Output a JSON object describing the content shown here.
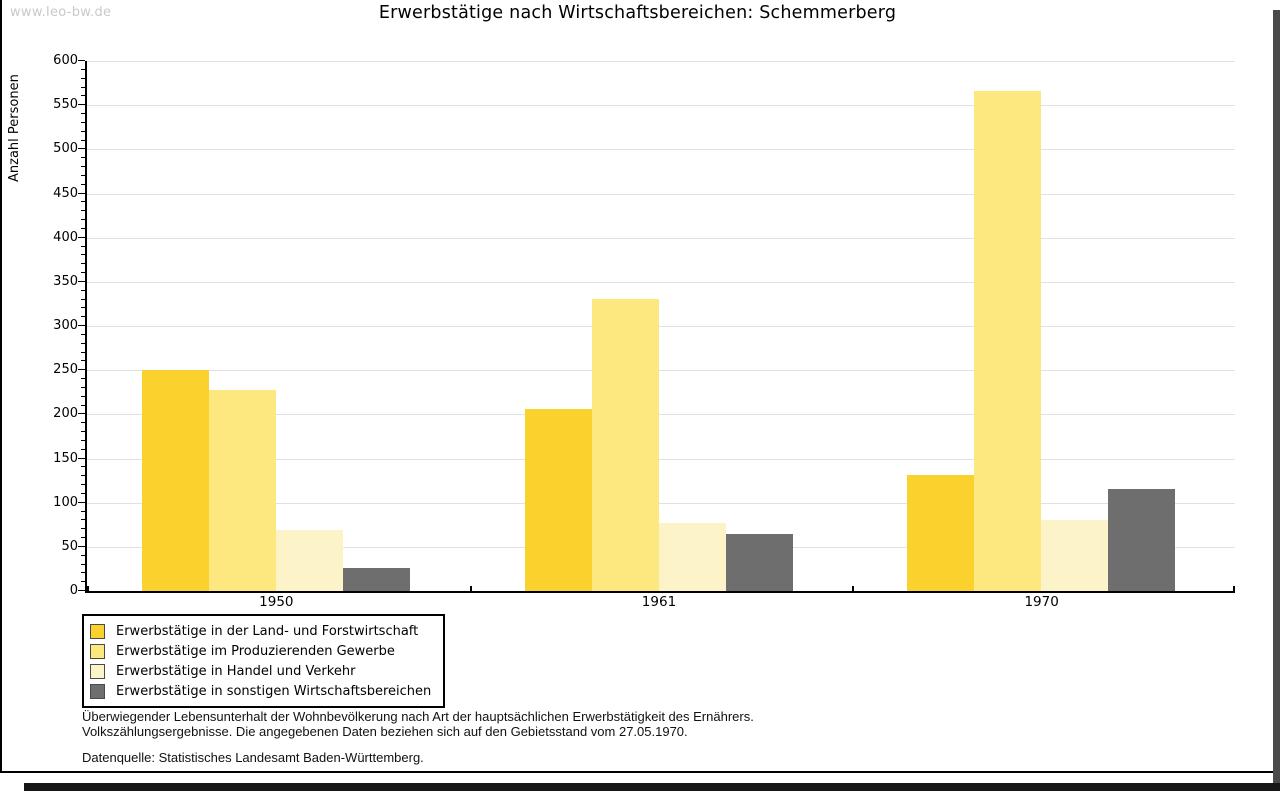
{
  "watermark": "www.leo-bw.de",
  "title": "Erwerbstätige nach Wirtschaftsbereichen: Schemmerberg",
  "chart_data": {
    "type": "bar",
    "title": "Erwerbstätige nach Wirtschaftsbereichen: Schemmerberg",
    "xlabel": "",
    "ylabel": "Anzahl Personen",
    "ylim": [
      0,
      600
    ],
    "ytick_step": 50,
    "yminor_step": 10,
    "grid": true,
    "legend_position": "bottom-left",
    "categories": [
      "1950",
      "1961",
      "1970"
    ],
    "series": [
      {
        "name": "Erwerbstätige in der Land- und Forstwirtschaft",
        "color": "#FBD22D",
        "values": [
          250,
          206,
          131
        ]
      },
      {
        "name": "Erwerbstätige im Produzierenden Gewerbe",
        "color": "#FCE87E",
        "values": [
          227,
          331,
          566
        ]
      },
      {
        "name": "Erwerbstätige in Handel und Verkehr",
        "color": "#FCF4C8",
        "values": [
          69,
          77,
          80
        ]
      },
      {
        "name": "Erwerbstätige in sonstigen Wirtschaftsbereichen",
        "color": "#6E6E6E",
        "values": [
          26,
          64,
          115
        ]
      }
    ]
  },
  "footer": {
    "line1": "Überwiegender Lebensunterhalt der Wohnbevölkerung nach Art der hauptsächlichen Erwerbstätigkeit des Ernährers.",
    "line2": "Volkszählungsergebnisse. Die angegebenen Daten beziehen sich auf den Gebietsstand vom 27.05.1970.",
    "source": "Datenquelle: Statistisches Landesamt Baden-Württemberg."
  },
  "colors": {
    "grid": "#E1E1E1",
    "axis": "#000000",
    "watermark": "#C9C9C9",
    "swatch_border": "#4A4A4A"
  }
}
